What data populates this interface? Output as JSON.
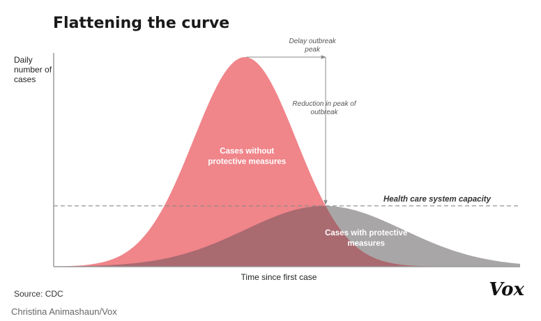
{
  "title": "Flattening the curve",
  "chart_data": {
    "type": "area",
    "ylabel": [
      "Daily",
      "number of",
      "cases"
    ],
    "xlabel": "Time since first case",
    "xlim": [
      0,
      100
    ],
    "ylim": [
      0,
      100
    ],
    "series": [
      {
        "name": "Cases without protective measures",
        "label_lines": [
          "Cases without",
          "protective measures"
        ],
        "peak_x": 41,
        "peak": 100,
        "spread": 11,
        "color": "#f0858a"
      },
      {
        "name": "Cases with protective measures",
        "label_lines": [
          "Cases with protective",
          "measures"
        ],
        "peak_x": 58,
        "peak": 29,
        "spread": 17,
        "color": "#a8a6a6"
      }
    ],
    "capacity": {
      "label": "Health care system capacity",
      "value": 29
    },
    "annotations": [
      {
        "id": "delay",
        "lines": [
          "Delay outbreak",
          "peak"
        ]
      },
      {
        "id": "reduction",
        "lines": [
          "Reduction in peak of",
          "outbreak"
        ]
      }
    ]
  },
  "source": "Source: CDC",
  "credit": "Christina Animashaun/Vox",
  "brand": "Vox",
  "colors": {
    "no_measures": "#f0858a",
    "with_measures": "#a8a6a6",
    "overlap": "#a96a70",
    "axis": "#9a9a9a"
  }
}
